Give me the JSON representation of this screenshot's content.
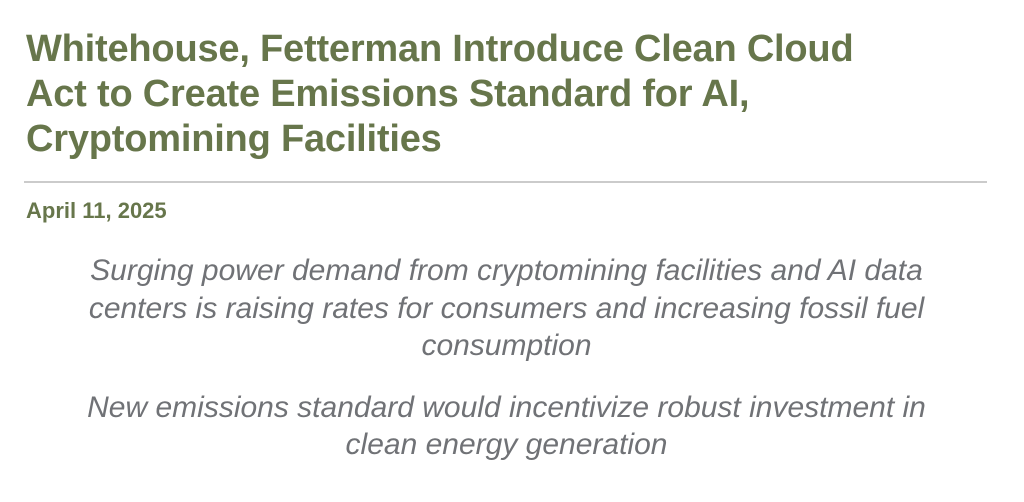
{
  "header": {
    "title_full": "Whitehouse, Fetterman Introduce Clean Cloud Act to Create Emissions Standard for AI, Cryptomining Facilities",
    "title_lines": [
      "Whitehouse, Fetterman Introduce Clean Cloud",
      "Act to Create Emissions Standard for AI,",
      "Cryptomining Facilities"
    ]
  },
  "meta": {
    "date": "April 11, 2025"
  },
  "subtitles": [
    {
      "full": "Surging power demand from cryptomining facilities and AI data centers is raising rates for consumers and increasing fossil fuel consumption",
      "lines": [
        "Surging power demand from cryptomining facilities and AI data",
        "centers is raising rates for consumers and increasing fossil fuel",
        "consumption"
      ]
    },
    {
      "full": "New emissions standard would incentivize robust investment in clean energy generation",
      "lines": [
        "New emissions standard would incentivize robust investment in",
        "clean energy generation"
      ]
    }
  ],
  "colors": {
    "heading_green": "#67764b",
    "subtitle_gray": "#707276",
    "divider_gray": "#cbcbcb",
    "background": "#ffffff"
  }
}
